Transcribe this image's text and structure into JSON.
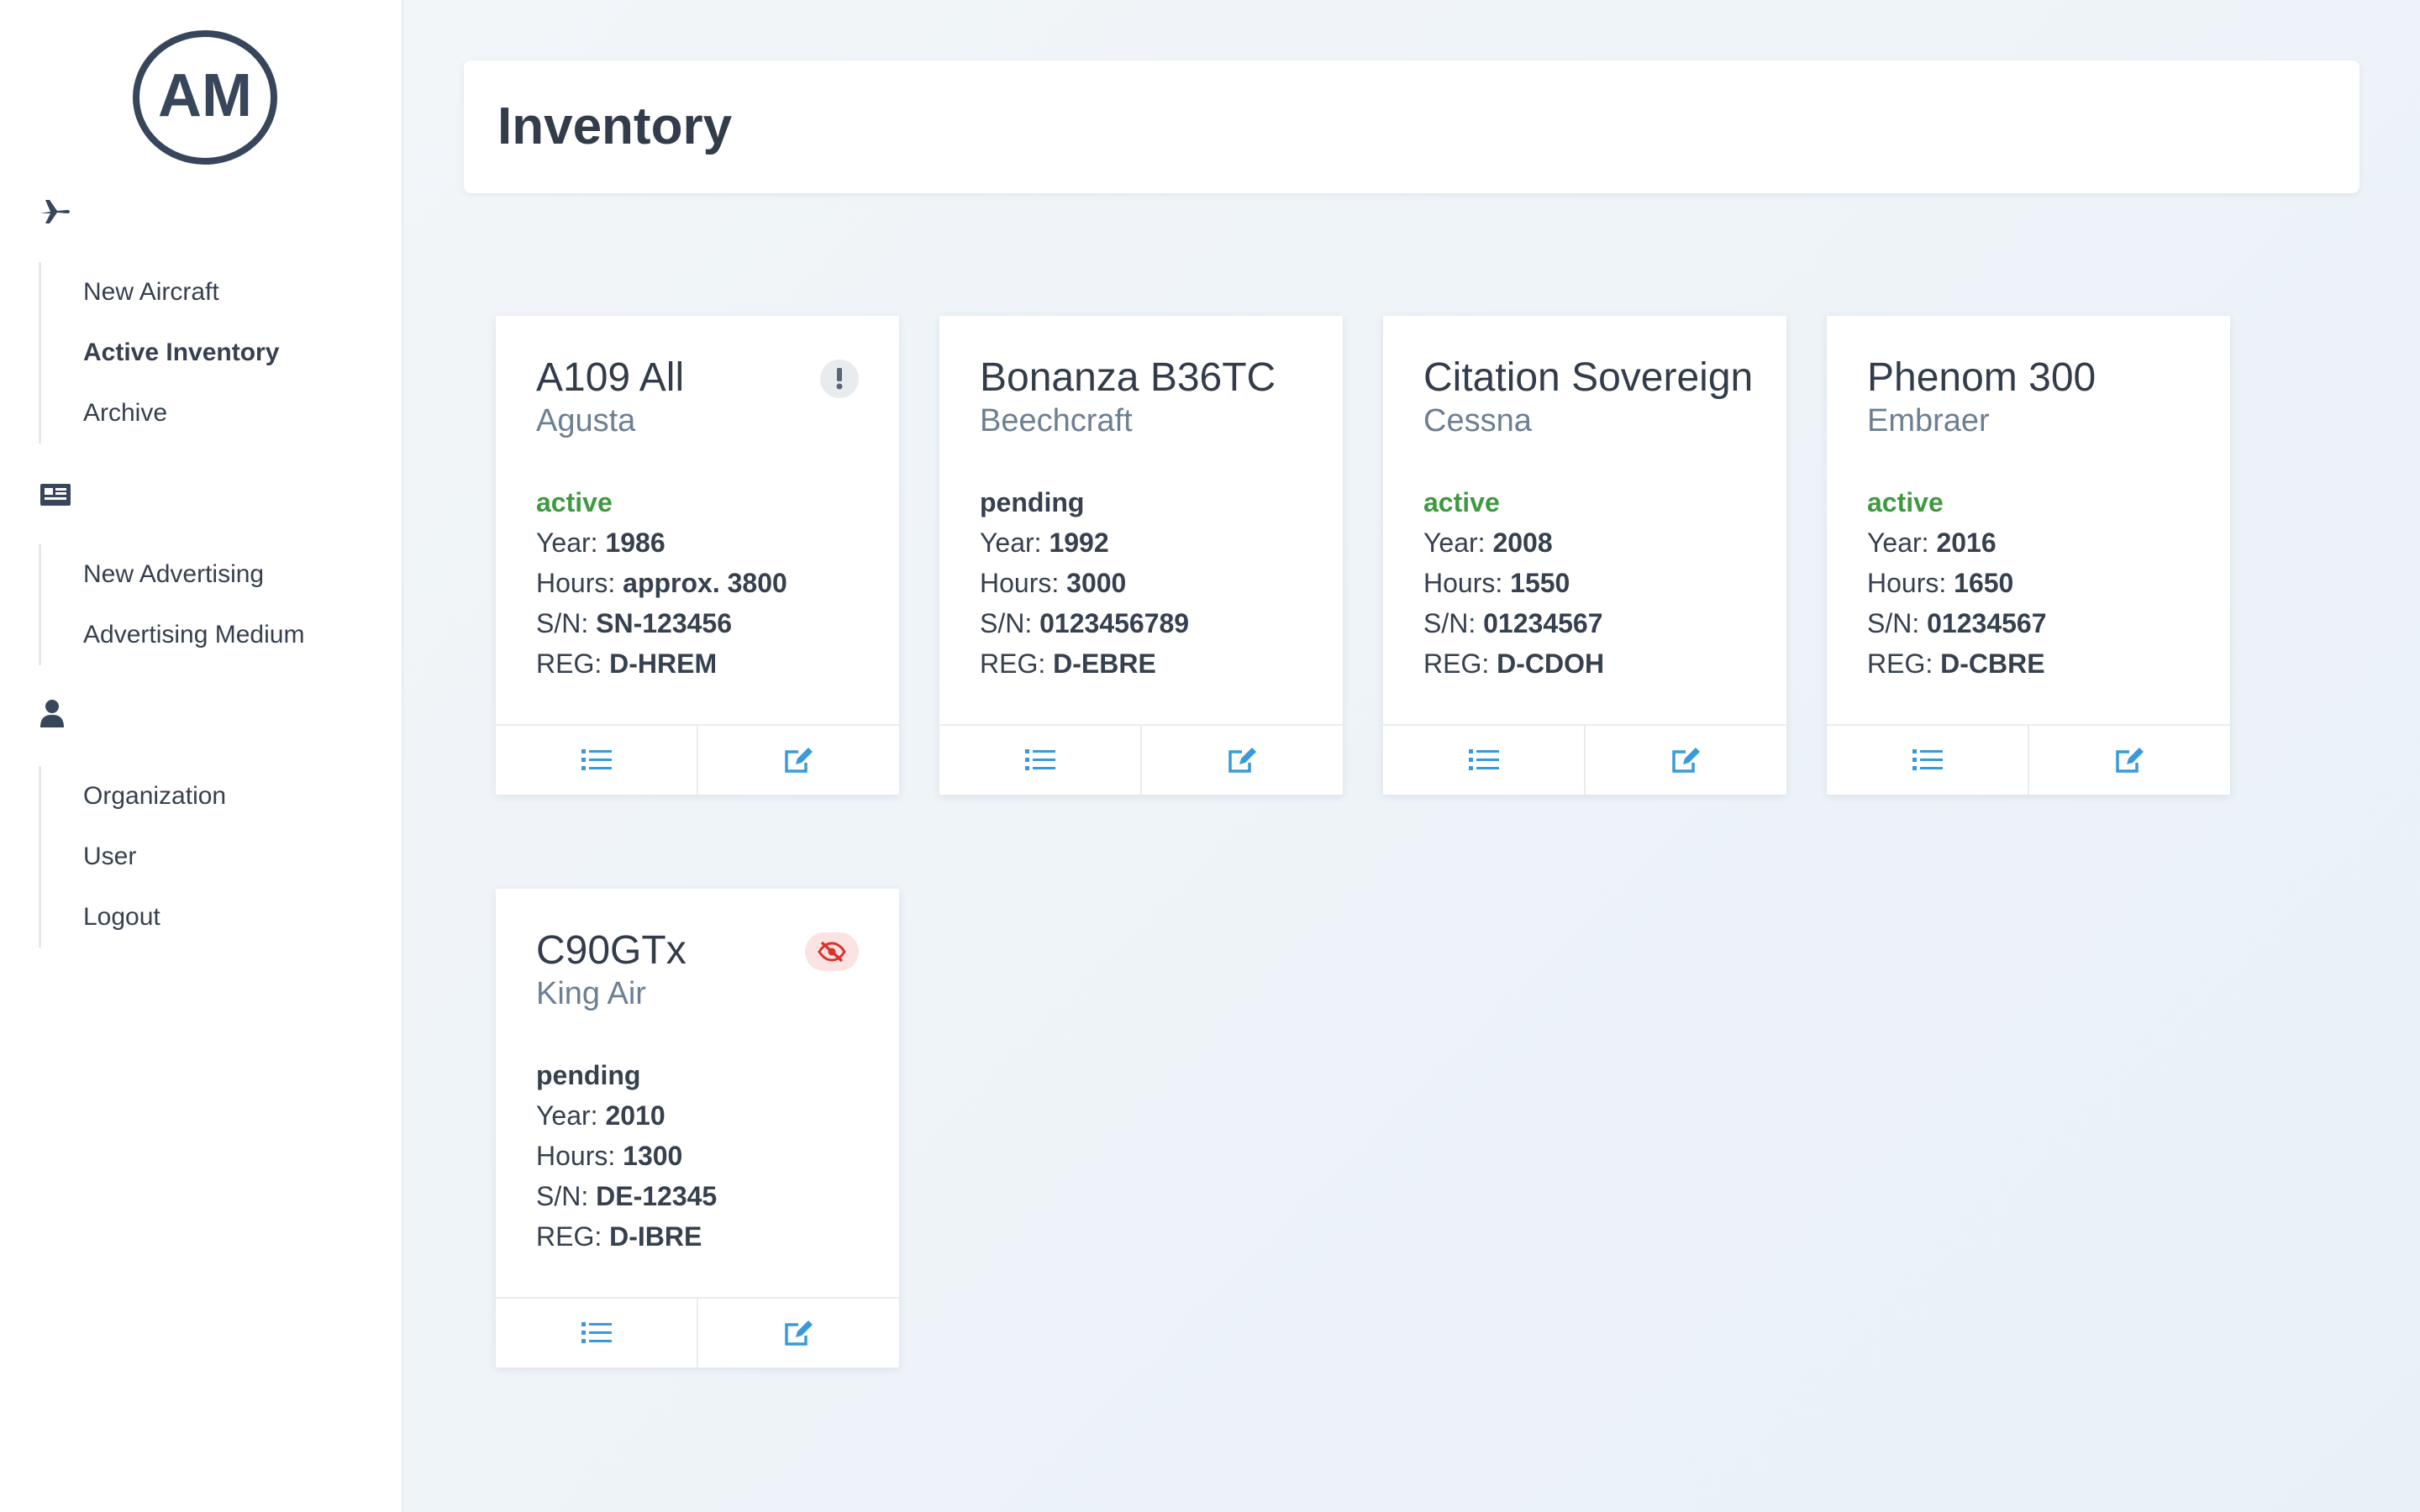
{
  "app": {
    "logo_text": "AM"
  },
  "sidebar": {
    "sections": [
      {
        "icon": "plane-icon",
        "items": [
          "New Aircraft",
          "Active Inventory",
          "Archive"
        ]
      },
      {
        "icon": "newspaper-icon",
        "items": [
          "New Advertising",
          "Advertising Medium"
        ]
      },
      {
        "icon": "user-icon",
        "items": [
          "Organization",
          "User",
          "Logout"
        ]
      }
    ],
    "active_item": "Active Inventory"
  },
  "header": {
    "title": "Inventory"
  },
  "labels": {
    "year": "Year:",
    "hours": "Hours:",
    "sn": "S/N:",
    "reg": "REG:"
  },
  "cards": [
    {
      "title": "A109 All",
      "maker": "Agusta",
      "status": "active",
      "year": "1986",
      "hours": "approx. 3800",
      "sn": "SN-123456",
      "reg": "D-HREM",
      "badge": "exclamation-icon"
    },
    {
      "title": "Bonanza B36TC",
      "maker": "Beechcraft",
      "status": "pending",
      "year": "1992",
      "hours": "3000",
      "sn": "0123456789",
      "reg": "D-EBRE",
      "badge": ""
    },
    {
      "title": "Citation Sovereign",
      "maker": "Cessna",
      "status": "active",
      "year": "2008",
      "hours": "1550",
      "sn": "01234567",
      "reg": "D-CDOH",
      "badge": ""
    },
    {
      "title": "Phenom 300",
      "maker": "Embraer",
      "status": "active",
      "year": "2016",
      "hours": "1650",
      "sn": "01234567",
      "reg": "D-CBRE",
      "badge": ""
    },
    {
      "title": "C90GTx",
      "maker": "King Air",
      "status": "pending",
      "year": "2010",
      "hours": "1300",
      "sn": "DE-12345",
      "reg": "D-IBRE",
      "badge": "eye-slash-icon"
    }
  ],
  "colors": {
    "accent": "#3a9ad9",
    "active": "#3f9a3f",
    "danger": "#d9342b",
    "text": "#36404e"
  }
}
